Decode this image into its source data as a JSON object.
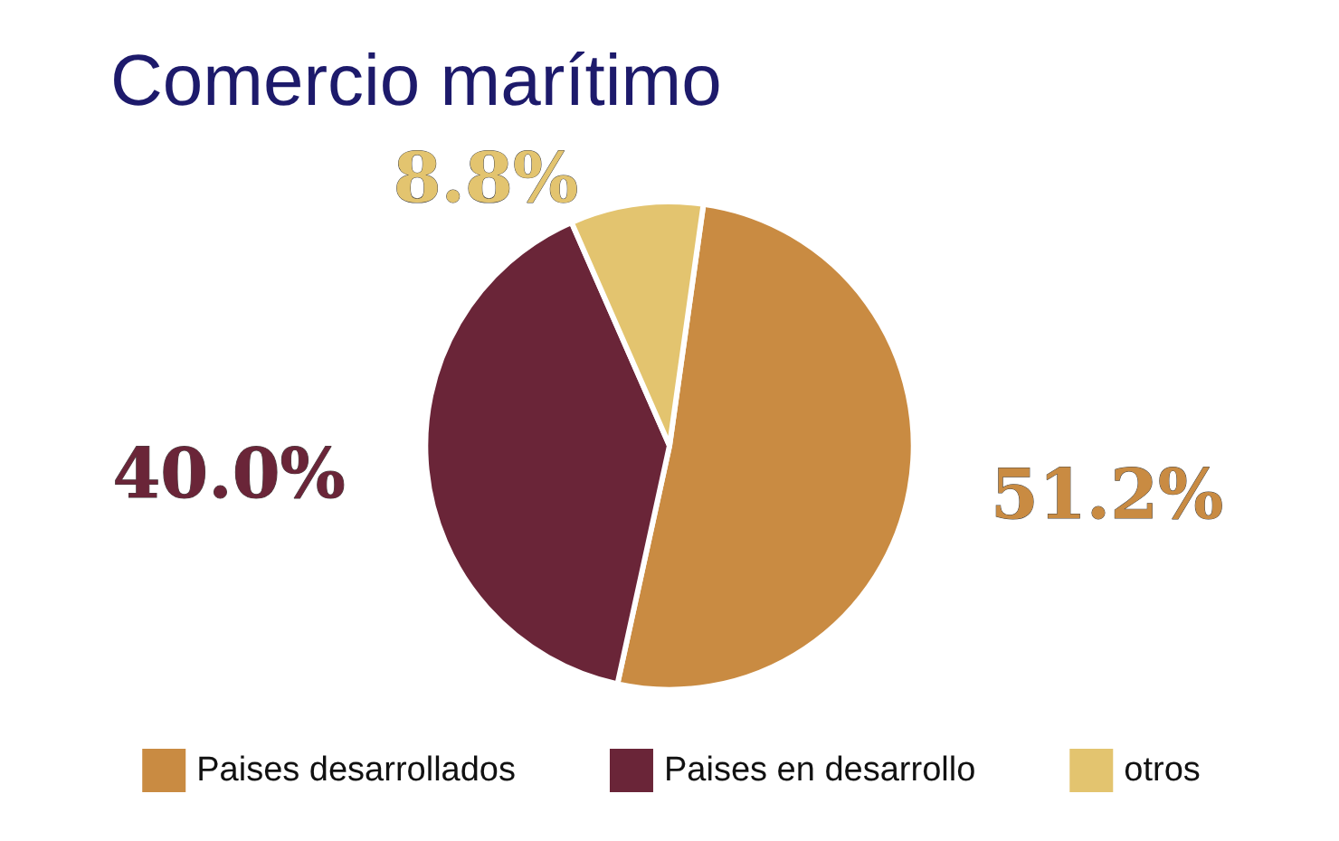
{
  "chart_data": {
    "type": "pie",
    "title": "Comercio marítimo",
    "categories": [
      "Paises desarrollados",
      "Paises en desarrollo",
      "otros"
    ],
    "values": [
      51.2,
      40.0,
      8.8
    ],
    "colors": [
      "#c98b42",
      "#6a2538",
      "#e3c46f"
    ],
    "value_labels": [
      "51.2%",
      "40.0%",
      "8.8%"
    ],
    "legend": "bottom"
  }
}
